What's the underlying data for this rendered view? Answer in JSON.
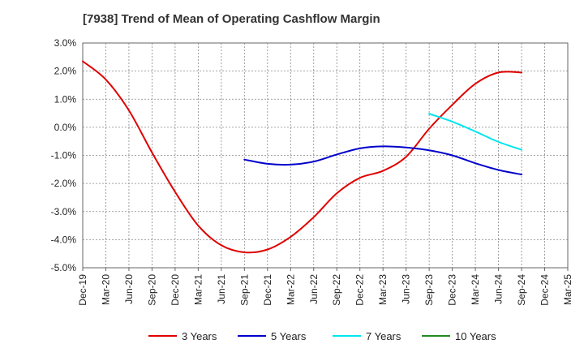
{
  "chart_data": {
    "type": "line",
    "title": "[7938]  Trend of Mean of Operating Cashflow Margin",
    "xlabel": "",
    "ylabel": "",
    "ylim": [
      -5.0,
      3.0
    ],
    "y_ticks": [
      "3.0%",
      "2.0%",
      "1.0%",
      "0.0%",
      "-1.0%",
      "-2.0%",
      "-3.0%",
      "-4.0%",
      "-5.0%"
    ],
    "x_ticks": [
      "Dec-19",
      "Mar-20",
      "Jun-20",
      "Sep-20",
      "Dec-20",
      "Mar-21",
      "Jun-21",
      "Sep-21",
      "Dec-21",
      "Mar-22",
      "Jun-22",
      "Sep-22",
      "Dec-22",
      "Mar-23",
      "Jun-23",
      "Sep-23",
      "Dec-23",
      "Mar-24",
      "Jun-24",
      "Sep-24",
      "Dec-24",
      "Mar-25"
    ],
    "grid": true,
    "legend_position": "bottom",
    "series": [
      {
        "name": "3 Years",
        "color": "#e00000",
        "x": [
          "Dec-19",
          "Mar-20",
          "Jun-20",
          "Sep-20",
          "Dec-20",
          "Mar-21",
          "Jun-21",
          "Sep-21",
          "Dec-21",
          "Mar-22",
          "Jun-22",
          "Sep-22",
          "Dec-22",
          "Mar-23",
          "Jun-23",
          "Sep-23",
          "Dec-23",
          "Mar-24",
          "Jun-24",
          "Sep-24"
        ],
        "values": [
          2.35,
          1.7,
          0.6,
          -0.9,
          -2.3,
          -3.5,
          -4.2,
          -4.45,
          -4.35,
          -3.9,
          -3.2,
          -2.35,
          -1.8,
          -1.55,
          -1.05,
          -0.05,
          0.8,
          1.55,
          1.95,
          1.95
        ]
      },
      {
        "name": "5 Years",
        "color": "#0000cc",
        "x": [
          "Sep-21",
          "Dec-21",
          "Mar-22",
          "Jun-22",
          "Sep-22",
          "Dec-22",
          "Mar-23",
          "Jun-23",
          "Sep-23",
          "Dec-23",
          "Mar-24",
          "Jun-24",
          "Sep-24"
        ],
        "values": [
          -1.15,
          -1.3,
          -1.33,
          -1.22,
          -0.97,
          -0.75,
          -0.68,
          -0.72,
          -0.82,
          -1.0,
          -1.28,
          -1.52,
          -1.68
        ]
      },
      {
        "name": "7 Years",
        "color": "#00e5ee",
        "x": [
          "Sep-23",
          "Dec-23",
          "Mar-24",
          "Jun-24",
          "Sep-24"
        ],
        "values": [
          0.48,
          0.2,
          -0.15,
          -0.52,
          -0.8
        ]
      },
      {
        "name": "10 Years",
        "color": "#228b22",
        "x": [],
        "values": []
      }
    ]
  }
}
